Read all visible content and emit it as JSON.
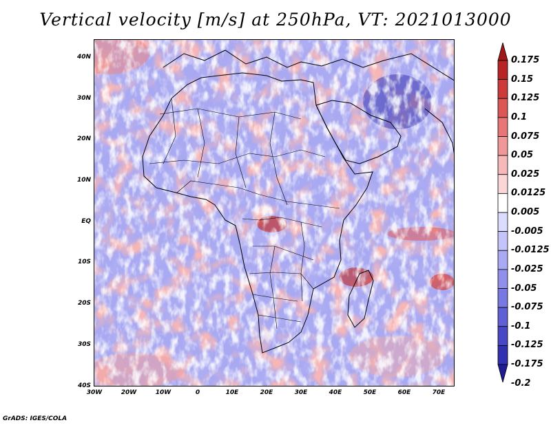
{
  "title": "Vertical velocity [m/s] at 250hPa, VT: 2021013000",
  "footer": "GrADS: IGES/COLA",
  "map": {
    "lon_range": [
      -30,
      75
    ],
    "lat_range": [
      -40,
      45
    ],
    "lat_labels": [
      "40N",
      "30N",
      "20N",
      "10N",
      "EQ",
      "10S",
      "20S",
      "30S",
      "40S"
    ],
    "lat_values": [
      40,
      30,
      20,
      10,
      0,
      -10,
      -20,
      -30,
      -40
    ],
    "lon_labels": [
      "30W",
      "20W",
      "10W",
      "0",
      "10E",
      "20E",
      "30E",
      "40E",
      "50E",
      "60E",
      "70E"
    ],
    "lon_values": [
      -30,
      -20,
      -10,
      0,
      10,
      20,
      30,
      40,
      50,
      60,
      70
    ]
  },
  "colorbar": {
    "labels": [
      "0.175",
      "0.15",
      "0.125",
      "0.1",
      "0.075",
      "0.05",
      "0.025",
      "0.0125",
      "0.005",
      "-0.005",
      "-0.0125",
      "-0.025",
      "-0.05",
      "-0.075",
      "-0.1",
      "-0.125",
      "-0.175",
      "-0.2"
    ],
    "colors": [
      "#a01818",
      "#b82424",
      "#cc3a3a",
      "#dc5656",
      "#e87676",
      "#f09898",
      "#f6b8b8",
      "#fad6d6",
      "#ffffff",
      "#dcdcff",
      "#c4c4fa",
      "#aaaaf4",
      "#9090ec",
      "#7878e2",
      "#6060d6",
      "#4848c6",
      "#3030b0",
      "#201c96"
    ]
  }
}
